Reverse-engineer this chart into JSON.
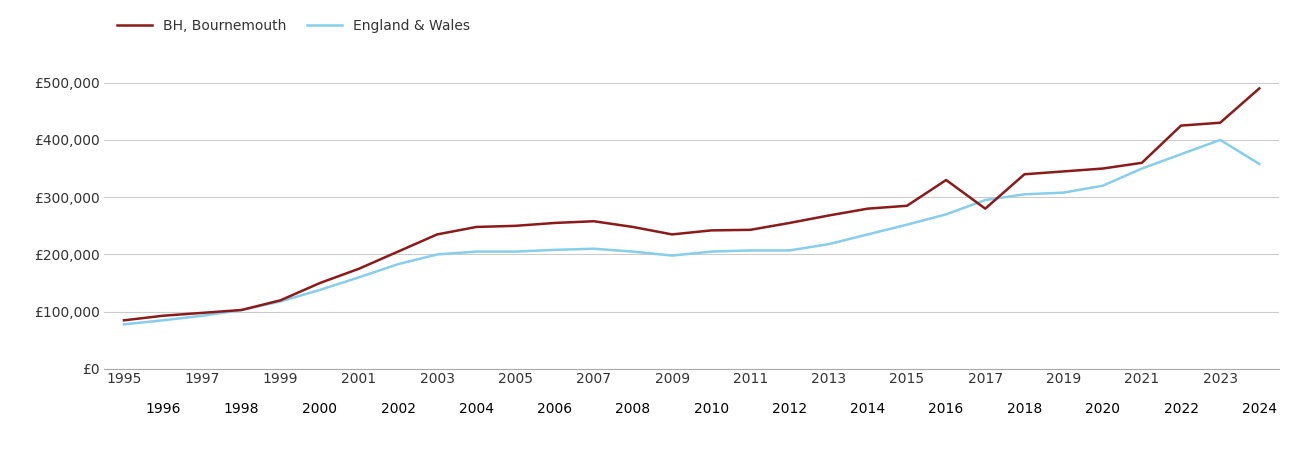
{
  "bh_years": [
    1995,
    1996,
    1997,
    1998,
    1999,
    2000,
    2001,
    2002,
    2003,
    2004,
    2005,
    2006,
    2007,
    2008,
    2009,
    2010,
    2011,
    2012,
    2013,
    2014,
    2015,
    2016,
    2017,
    2018,
    2019,
    2020,
    2021,
    2022,
    2023,
    2024
  ],
  "bh_values": [
    85000,
    93000,
    98000,
    103000,
    120000,
    150000,
    175000,
    205000,
    235000,
    248000,
    250000,
    255000,
    258000,
    248000,
    235000,
    242000,
    243000,
    255000,
    268000,
    280000,
    285000,
    330000,
    280000,
    340000,
    345000,
    350000,
    360000,
    425000,
    430000,
    490000
  ],
  "ew_years": [
    1995,
    1996,
    1997,
    1998,
    1999,
    2000,
    2001,
    2002,
    2003,
    2004,
    2005,
    2006,
    2007,
    2008,
    2009,
    2010,
    2011,
    2012,
    2013,
    2014,
    2015,
    2016,
    2017,
    2018,
    2019,
    2020,
    2021,
    2022,
    2023,
    2024
  ],
  "ew_values": [
    78000,
    85000,
    93000,
    103000,
    118000,
    138000,
    160000,
    183000,
    200000,
    205000,
    205000,
    208000,
    210000,
    205000,
    198000,
    205000,
    207000,
    207000,
    218000,
    235000,
    252000,
    270000,
    295000,
    305000,
    308000,
    320000,
    350000,
    375000,
    400000,
    358000
  ],
  "bh_color": "#8b1a1a",
  "ew_color": "#87ceeb",
  "bh_label": "BH, Bournemouth",
  "ew_label": "England & Wales",
  "ylim": [
    0,
    550000
  ],
  "yticks": [
    0,
    100000,
    200000,
    300000,
    400000,
    500000
  ],
  "ytick_labels": [
    "£0",
    "£100,000",
    "£200,000",
    "£300,000",
    "£400,000",
    "£500,000"
  ],
  "bg_color": "#ffffff",
  "grid_color": "#cccccc",
  "line_width": 1.8,
  "odd_years": [
    1995,
    1997,
    1999,
    2001,
    2003,
    2005,
    2007,
    2009,
    2011,
    2013,
    2015,
    2017,
    2019,
    2021,
    2023
  ],
  "even_years": [
    1996,
    1998,
    2000,
    2002,
    2004,
    2006,
    2008,
    2010,
    2012,
    2014,
    2016,
    2018,
    2020,
    2022,
    2024
  ]
}
